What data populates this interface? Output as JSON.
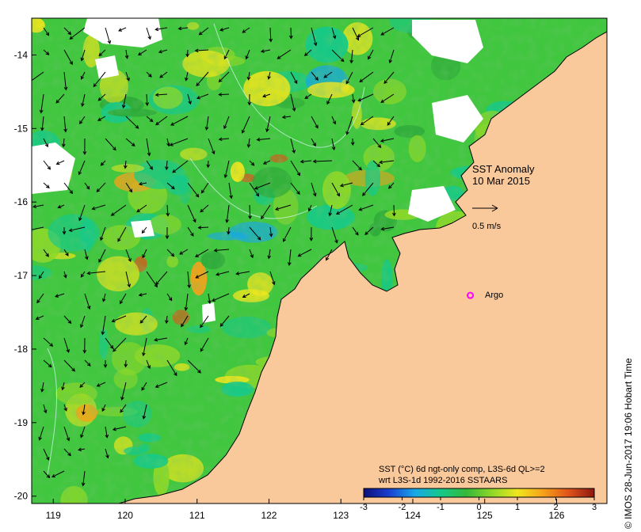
{
  "map": {
    "lon_range": [
      118.7,
      126.7
    ],
    "lat_range": [
      -20.1,
      -13.5
    ],
    "lon_ticks": [
      "119",
      "120",
      "121",
      "122",
      "123",
      "124",
      "125",
      "126"
    ],
    "lat_ticks": [
      "-14",
      "-15",
      "-16",
      "-17",
      "-18",
      "-19",
      "-20"
    ],
    "land_color": "#f9c89b",
    "coast_color": "#000000"
  },
  "annotations": {
    "title_line1": "SST Anomaly",
    "title_line2": "10 Mar 2015",
    "vector_scale_label": "0.5 m/s",
    "argo_label": "Argo",
    "argo_color": "#ff00ff",
    "argo_position": {
      "lon": 124.8,
      "lat": -17.27
    }
  },
  "colorbar": {
    "caption_line1": "SST (°C) 6d ngt-only comp, L3S-6d QL>=2",
    "caption_line2": "wrt L3S-1d 1992-2016 SSTAARS",
    "range": [
      -3,
      3
    ],
    "ticks": [
      "-3",
      "-2",
      "-1",
      "0",
      "1",
      "2",
      "3"
    ],
    "colors": [
      "#0d0f7a",
      "#1a3fd0",
      "#17a8e8",
      "#16c98a",
      "#33b83a",
      "#8ed829",
      "#f0e61e",
      "#f6a11a",
      "#e0531a",
      "#8c1610"
    ]
  },
  "credit": "© IMOS 28-Jun-2017 19:06 Hobart Time"
}
